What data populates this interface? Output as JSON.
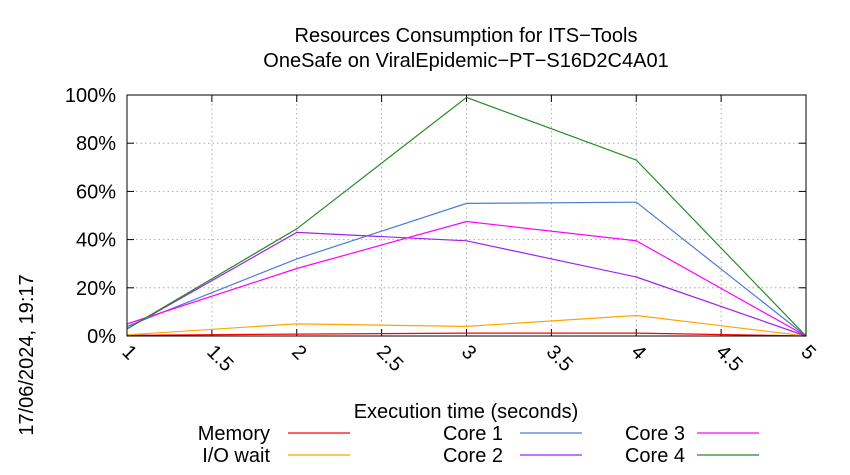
{
  "chart_data": {
    "type": "line",
    "title": "Resources Consumption for ITS−Tools",
    "subtitle": "OneSafe on ViralEpidemic−PT−S16D2C4A01",
    "xlabel": "Execution time (seconds)",
    "ylabel": "",
    "side_label": "17/06/2024, 19:17",
    "xlim": [
      1,
      5
    ],
    "ylim": [
      0,
      100
    ],
    "x_ticks": [
      "1",
      "1.5",
      "2",
      "2.5",
      "3",
      "3.5",
      "4",
      "4.5",
      "5"
    ],
    "y_ticks": [
      "0%",
      "20%",
      "40%",
      "60%",
      "80%",
      "100%"
    ],
    "grid": true,
    "legend_position": "bottom",
    "x": [
      1,
      2,
      3,
      4,
      5
    ],
    "series": [
      {
        "name": "Memory",
        "color": "#ff0000",
        "values": [
          0.3,
          0.8,
          1.2,
          1.2,
          0
        ]
      },
      {
        "name": "I/O wait",
        "color": "#ffa500",
        "values": [
          0.5,
          5,
          4,
          8.5,
          0
        ]
      },
      {
        "name": "Core 1",
        "color": "#4b7bd8",
        "values": [
          4,
          32,
          55,
          55.5,
          0
        ]
      },
      {
        "name": "Core 2",
        "color": "#a020f0",
        "values": [
          3,
          43,
          39.5,
          24.5,
          0
        ]
      },
      {
        "name": "Core 3",
        "color": "#ff00ff",
        "values": [
          5,
          28,
          47.5,
          39.5,
          0
        ]
      },
      {
        "name": "Core 4",
        "color": "#228b22",
        "values": [
          3,
          44.5,
          99,
          73,
          0
        ]
      }
    ]
  }
}
